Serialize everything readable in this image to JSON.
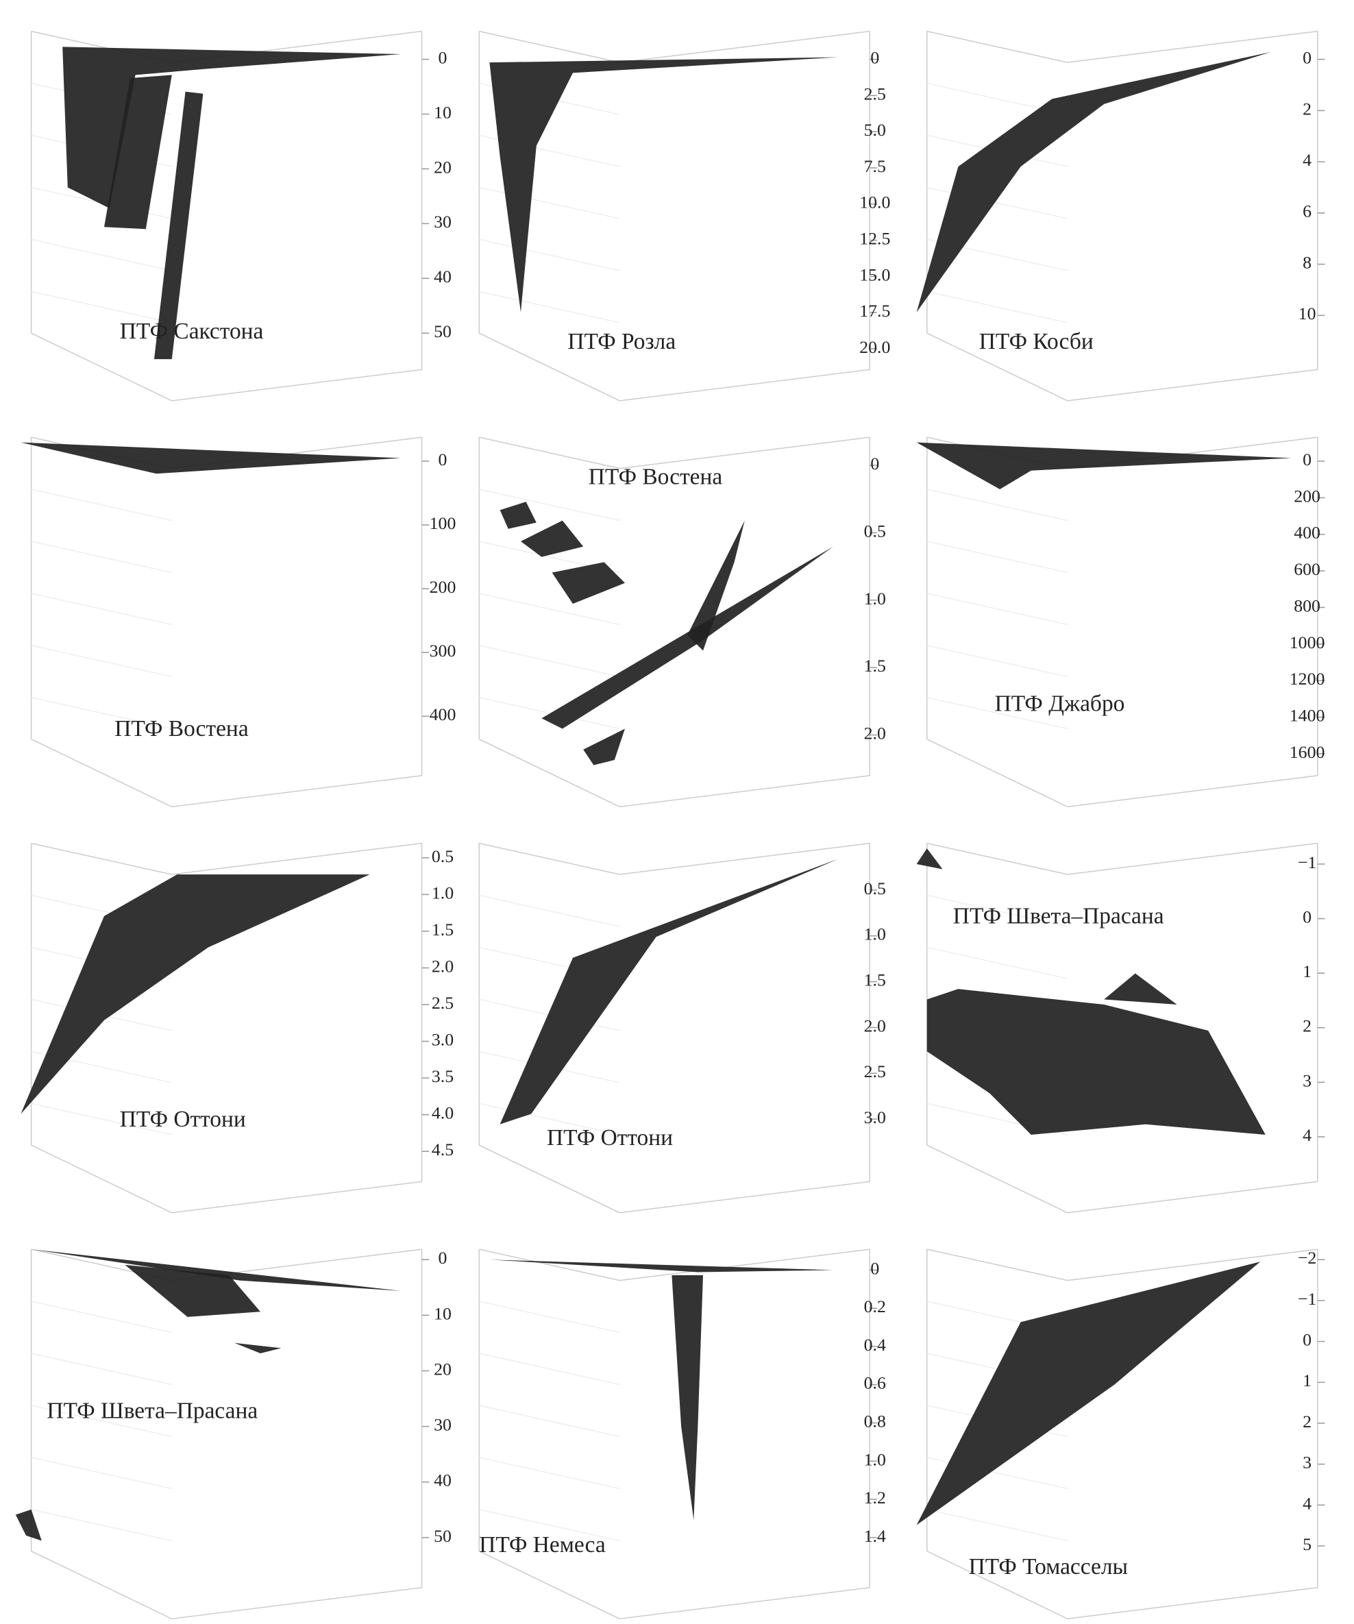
{
  "chart_data": [
    {
      "type": "scatter3d",
      "title": "ПТФ Сакстона",
      "ylim": [
        0,
        50
      ],
      "yticks": [
        0,
        10,
        20,
        30,
        40,
        50
      ]
    },
    {
      "type": "scatter3d",
      "title": "ПТФ Розла",
      "ylim": [
        0,
        20
      ],
      "yticks": [
        0,
        2.5,
        {
          "value": 5,
          "label": "5.0"
        },
        7.5,
        {
          "value": 10,
          "label": "10.0"
        },
        12.5,
        {
          "value": 15,
          "label": "15.0"
        },
        17.5,
        {
          "value": 20,
          "label": "20.0"
        }
      ]
    },
    {
      "type": "scatter3d",
      "title": "ПТФ Косби",
      "ylim": [
        0,
        10
      ],
      "yticks": [
        0,
        2,
        4,
        6,
        8,
        10
      ]
    },
    {
      "type": "scatter3d",
      "title": "ПТФ Востена",
      "ylim": [
        0,
        400
      ],
      "yticks": [
        0,
        100,
        200,
        300,
        400
      ]
    },
    {
      "type": "scatter3d",
      "title": "ПТФ Востена",
      "ylim": [
        0,
        2
      ],
      "yticks": [
        0,
        0.5,
        {
          "value": 1,
          "label": "1.0"
        },
        1.5,
        {
          "value": 2,
          "label": "2.0"
        }
      ]
    },
    {
      "type": "scatter3d",
      "title": "ПТФ Джабро",
      "ylim": [
        0,
        1600
      ],
      "yticks": [
        0,
        200,
        400,
        600,
        800,
        1000,
        1200,
        1400,
        1600
      ]
    },
    {
      "type": "scatter3d",
      "title": "ПТФ Оттони",
      "ylim": [
        0.5,
        4.5
      ],
      "yticks": [
        0.5,
        {
          "value": 1,
          "label": "1.0"
        },
        1.5,
        {
          "value": 2,
          "label": "2.0"
        },
        2.5,
        {
          "value": 3,
          "label": "3.0"
        },
        3.5,
        {
          "value": 4,
          "label": "4.0"
        },
        4.5
      ]
    },
    {
      "type": "scatter3d",
      "title": "ПТФ Оттони",
      "ylim": [
        0.5,
        3
      ],
      "yticks": [
        0.5,
        {
          "value": 1,
          "label": "1.0"
        },
        1.5,
        {
          "value": 2,
          "label": "2.0"
        },
        2.5,
        {
          "value": 3,
          "label": "3.0"
        }
      ]
    },
    {
      "type": "scatter3d",
      "title": "ПТФ Швета–Прасана",
      "ylim": [
        -1,
        4
      ],
      "yticks": [
        {
          "value": -1,
          "label": "−1"
        },
        0,
        1,
        2,
        3,
        4
      ]
    },
    {
      "type": "scatter3d",
      "title": "ПТФ Швета–Прасана",
      "ylim": [
        0,
        50
      ],
      "yticks": [
        0,
        10,
        20,
        30,
        40,
        50
      ]
    },
    {
      "type": "scatter3d",
      "title": "ПТФ Немеса",
      "ylim": [
        0,
        1.4
      ],
      "yticks": [
        0,
        0.2,
        0.4,
        0.6,
        0.8,
        {
          "value": 1,
          "label": "1.0"
        },
        1.2,
        1.4
      ]
    },
    {
      "type": "scatter3d",
      "title": "ПТФ Томасселы",
      "ylim": [
        -2,
        5
      ],
      "yticks": [
        {
          "value": -2,
          "label": "−2"
        },
        {
          "value": -1,
          "label": "−1"
        },
        0,
        1,
        2,
        3,
        4,
        5
      ]
    }
  ]
}
